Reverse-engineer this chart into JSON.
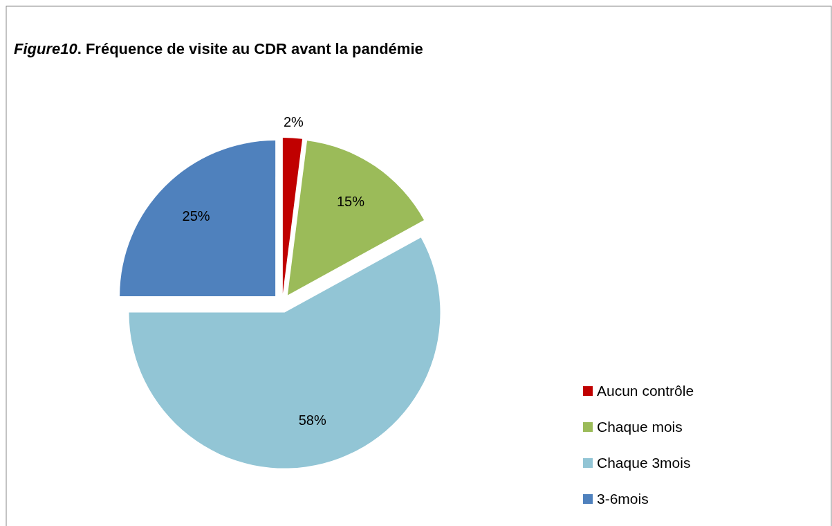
{
  "chart_data": {
    "type": "pie",
    "title": "Figure10. Fréquence de visite au CDR avant la pandémie",
    "categories": [
      "Aucun contrôle",
      "Chaque mois",
      "Chaque 3mois",
      "3-6mois"
    ],
    "values": [
      2,
      15,
      58,
      25
    ],
    "colors": [
      "#c00000",
      "#9bbb59",
      "#92c5d5",
      "#4f81bd"
    ],
    "value_labels": [
      "2%",
      "15%",
      "58%",
      "25%"
    ],
    "legend": "right"
  }
}
